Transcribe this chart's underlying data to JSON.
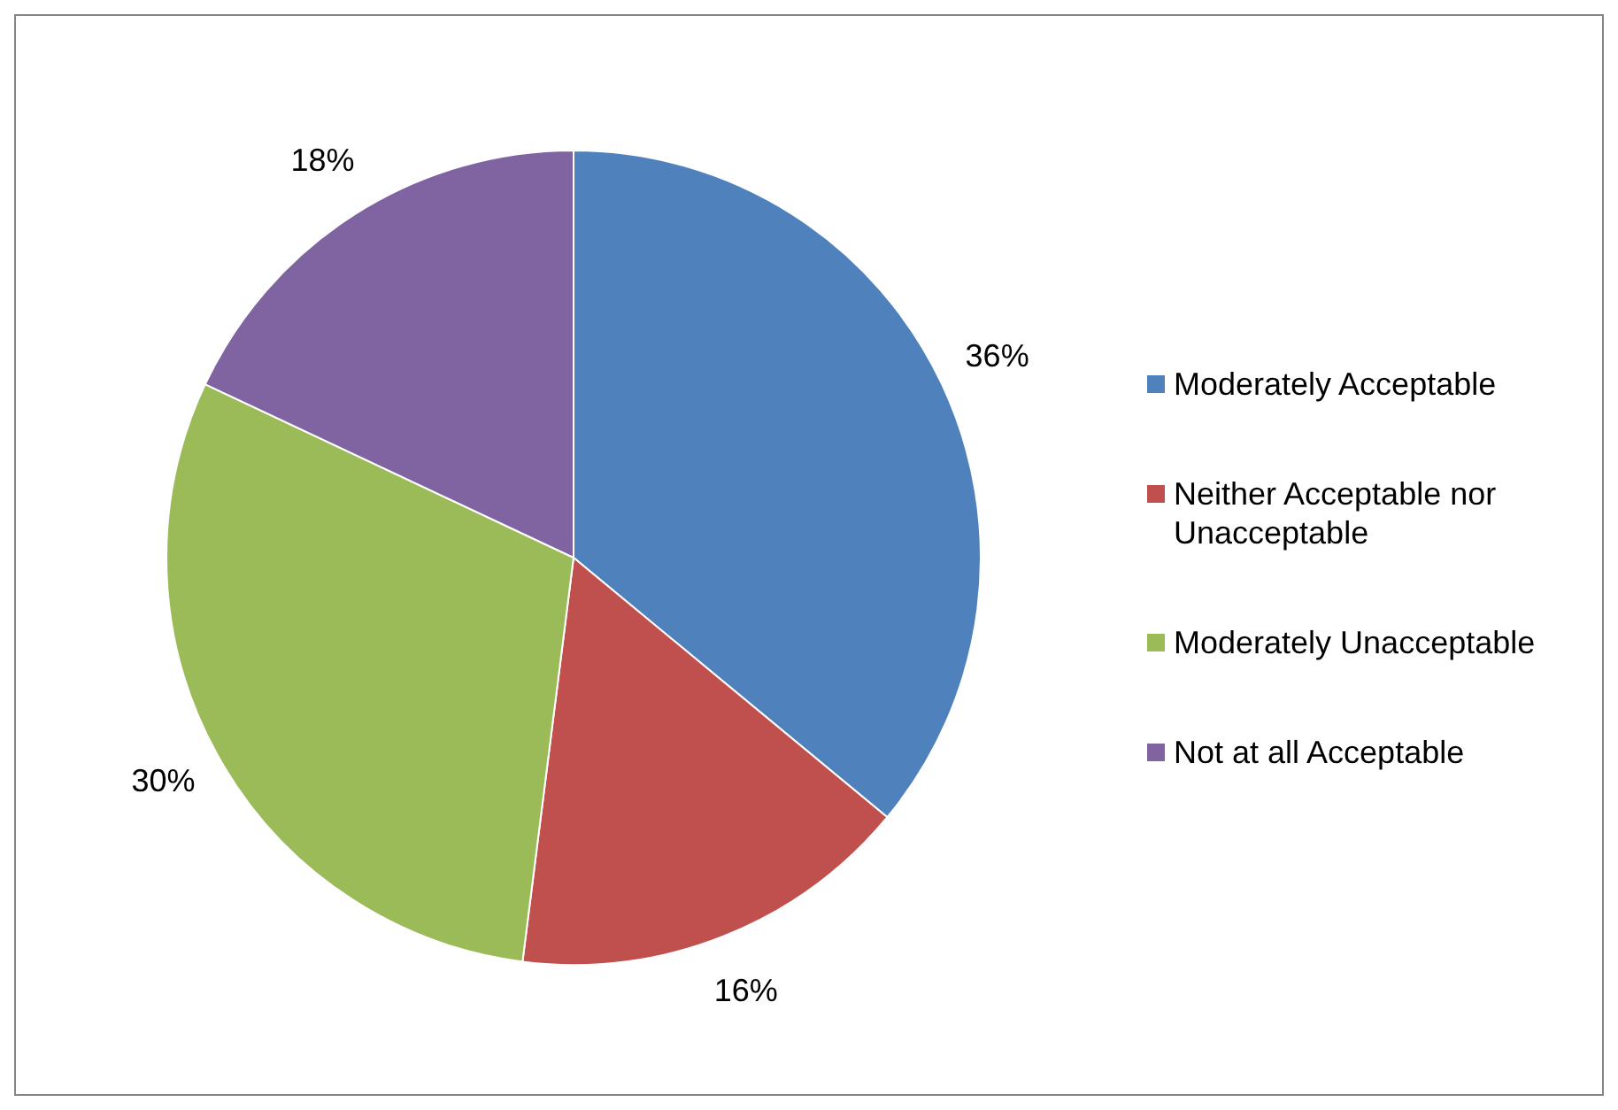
{
  "chart_data": {
    "type": "pie",
    "categories": [
      "Moderately Acceptable",
      "Neither Acceptable nor Unacceptable",
      "Moderately Unacceptable",
      "Not at all Acceptable"
    ],
    "values": [
      36,
      16,
      30,
      18
    ],
    "colors": [
      "#4f81bd",
      "#c0504d",
      "#9bbb59",
      "#8064a2"
    ],
    "value_labels": [
      "36%",
      "16%",
      "30%",
      "18%"
    ],
    "legend": "right"
  }
}
